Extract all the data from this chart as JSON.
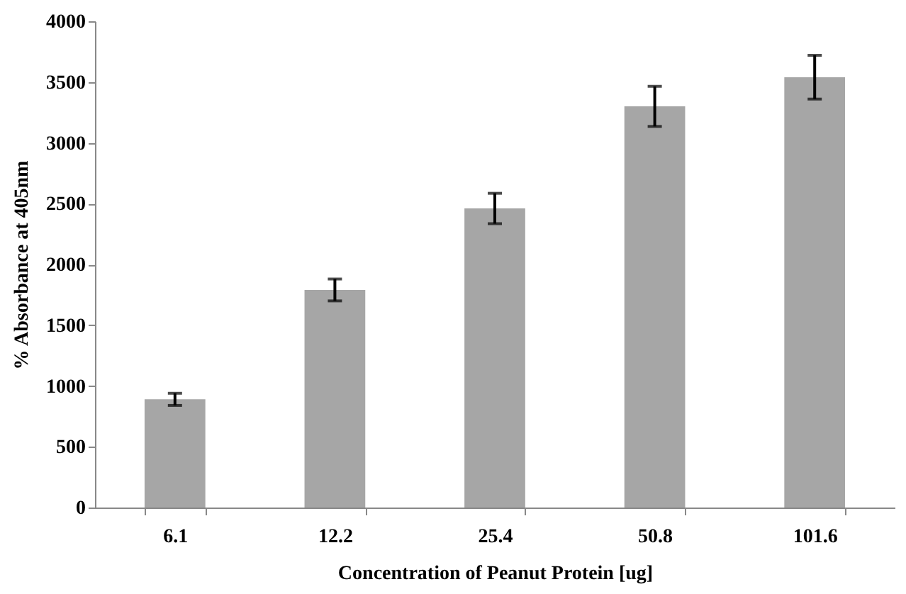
{
  "chart_data": {
    "type": "bar",
    "categories": [
      "6.1",
      "12.2",
      "25.4",
      "50.8",
      "101.6"
    ],
    "values": [
      890,
      1790,
      2460,
      3300,
      3540
    ],
    "errors": [
      50,
      90,
      125,
      165,
      180
    ],
    "color": "#a6a6a6",
    "xlabel": "Concentration of Peanut Protein [ug]",
    "ylabel": "% Absorbance at 405nm",
    "ylim": [
      0,
      4000
    ],
    "yticks": [
      0,
      500,
      1000,
      1500,
      2000,
      2500,
      3000,
      3500,
      4000
    ],
    "grid": false
  }
}
